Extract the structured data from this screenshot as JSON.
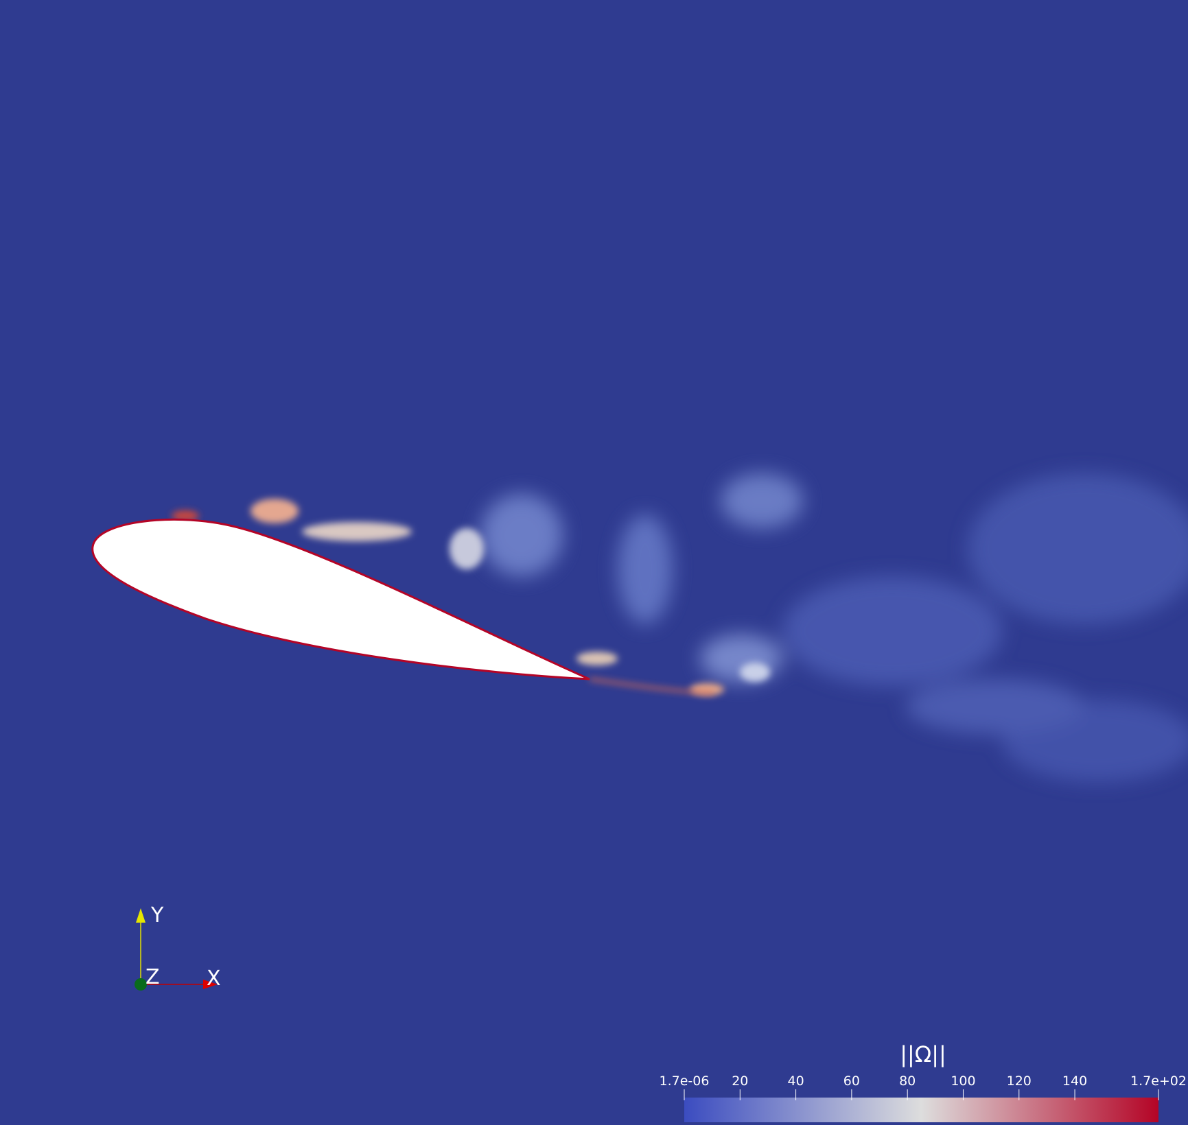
{
  "colorbar": {
    "title": "||Ω||",
    "range": [
      1.7e-06,
      170
    ],
    "ticks": [
      {
        "value": 1.7e-06,
        "label": "1.7e-06"
      },
      20,
      40,
      60,
      80,
      100,
      120,
      140,
      {
        "value": 170,
        "label": "1.7e+02"
      }
    ],
    "colors": [
      "#3b4cc0",
      "#dddddd",
      "#b40426"
    ]
  },
  "axes_triad": {
    "y": "Y",
    "z": "Z",
    "x": "X"
  }
}
